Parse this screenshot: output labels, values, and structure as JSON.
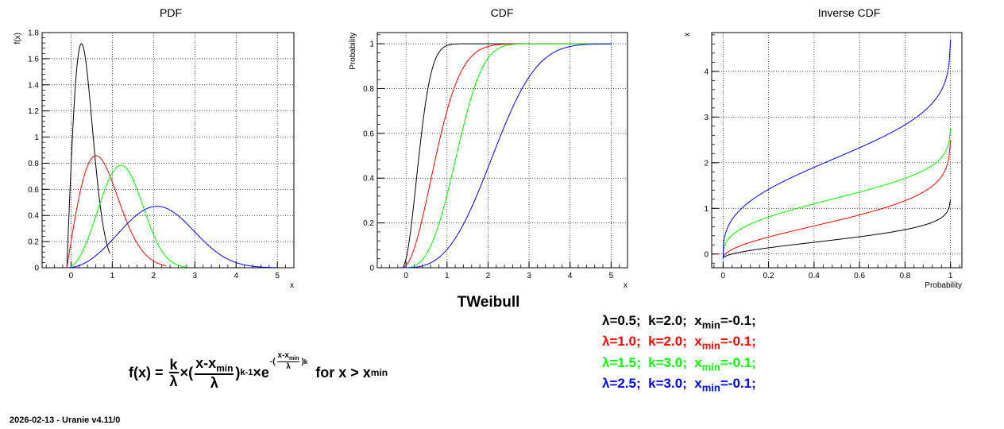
{
  "chart_data": [
    {
      "type": "line",
      "title": "PDF",
      "xlabel": "x",
      "ylabel": "f(x)",
      "xlim": [
        -0.7,
        5.4
      ],
      "ylim": [
        0,
        1.8
      ],
      "xticks": [
        "0",
        "1",
        "2",
        "3",
        "4",
        "5"
      ],
      "yticks": [
        "0",
        "0.2",
        "0.4",
        "0.6",
        "0.8",
        "1",
        "1.2",
        "1.4",
        "1.6",
        "1.8"
      ],
      "grid": true,
      "series": [
        {
          "color": "#000000",
          "lambda": 0.5,
          "k": 2.0,
          "xmin": -0.1,
          "x_range": [
            -0.1,
            0.94
          ],
          "peak": {
            "x": 0.25,
            "y": 1.72
          }
        },
        {
          "color": "#ff0000",
          "lambda": 1.0,
          "k": 2.0,
          "xmin": -0.1,
          "x_range": [
            -0.1,
            2.3
          ],
          "peak": {
            "x": 0.61,
            "y": 0.86
          }
        },
        {
          "color": "#00ff00",
          "lambda": 1.5,
          "k": 3.0,
          "xmin": -0.1,
          "x_range": [
            -0.1,
            2.8
          ],
          "peak": {
            "x": 1.21,
            "y": 0.78
          }
        },
        {
          "color": "#0000ff",
          "lambda": 2.5,
          "k": 3.0,
          "xmin": -0.1,
          "x_range": [
            -0.1,
            4.95
          ],
          "peak": {
            "x": 2.08,
            "y": 0.46
          }
        }
      ]
    },
    {
      "type": "line",
      "title": "CDF",
      "xlabel": "x",
      "ylabel": "Probability",
      "xlim": [
        -0.7,
        5.4
      ],
      "ylim": [
        0,
        1.05
      ],
      "xticks": [
        "0",
        "1",
        "2",
        "3",
        "4",
        "5"
      ],
      "yticks": [
        "0",
        "0.2",
        "0.4",
        "0.6",
        "0.8",
        "1"
      ],
      "grid": true,
      "series": [
        {
          "color": "#000000",
          "lambda": 0.5,
          "k": 2.0,
          "xmin": -0.1
        },
        {
          "color": "#ff0000",
          "lambda": 1.0,
          "k": 2.0,
          "xmin": -0.1
        },
        {
          "color": "#00ff00",
          "lambda": 1.5,
          "k": 3.0,
          "xmin": -0.1
        },
        {
          "color": "#0000ff",
          "lambda": 2.5,
          "k": 3.0,
          "xmin": -0.1
        }
      ]
    },
    {
      "type": "line",
      "title": "Inverse CDF",
      "xlabel": "Probability",
      "ylabel": "x",
      "xlim": [
        -0.05,
        1.05
      ],
      "ylim": [
        -0.3,
        4.85
      ],
      "xticks": [
        "0",
        "0.2",
        "0.4",
        "0.6",
        "0.8",
        "1"
      ],
      "yticks": [
        "0",
        "1",
        "2",
        "3",
        "4"
      ],
      "grid": true,
      "series": [
        {
          "color": "#000000",
          "lambda": 0.5,
          "k": 2.0,
          "xmin": -0.1,
          "end": {
            "x": 1.0,
            "y": 1.2
          }
        },
        {
          "color": "#ff0000",
          "lambda": 1.0,
          "k": 2.0,
          "xmin": -0.1,
          "end": {
            "x": 1.0,
            "y": 2.5
          }
        },
        {
          "color": "#00ff00",
          "lambda": 1.5,
          "k": 3.0,
          "xmin": -0.1,
          "end": {
            "x": 1.0,
            "y": 2.75
          }
        },
        {
          "color": "#0000ff",
          "lambda": 2.5,
          "k": 3.0,
          "xmin": -0.1,
          "end": {
            "x": 1.0,
            "y": 4.7
          }
        }
      ]
    }
  ],
  "main_title": "TWeibull",
  "legend": [
    {
      "color": "#000000",
      "lambda": "λ=0.5;",
      "k": "k=2.0;",
      "x": "x",
      "sub": "min",
      "val": "=-0.1;"
    },
    {
      "color": "#ff0000",
      "lambda": "λ=1.0;",
      "k": "k=2.0;",
      "x": "x",
      "sub": "min",
      "val": "=-0.1;"
    },
    {
      "color": "#00ff00",
      "lambda": "λ=1.5;",
      "k": "k=3.0;",
      "x": "x",
      "sub": "min",
      "val": "=-0.1;"
    },
    {
      "color": "#0000ff",
      "lambda": "λ=2.5;",
      "k": "k=3.0;",
      "x": "x",
      "sub": "min",
      "val": "=-0.1;"
    }
  ],
  "formula": {
    "lhs": "f(x) =",
    "k": "k",
    "lambda": "λ",
    "times": "×",
    "open": "(",
    "close": ")",
    "x": "x-x",
    "min": "min",
    "kminus1": "k-1",
    "e": "e",
    "neg": "-(",
    "kexp": "k",
    "tail": "for x > x",
    "tail_sub": "min"
  },
  "footer": "2026-02-13 - Uranie v4.11/0"
}
